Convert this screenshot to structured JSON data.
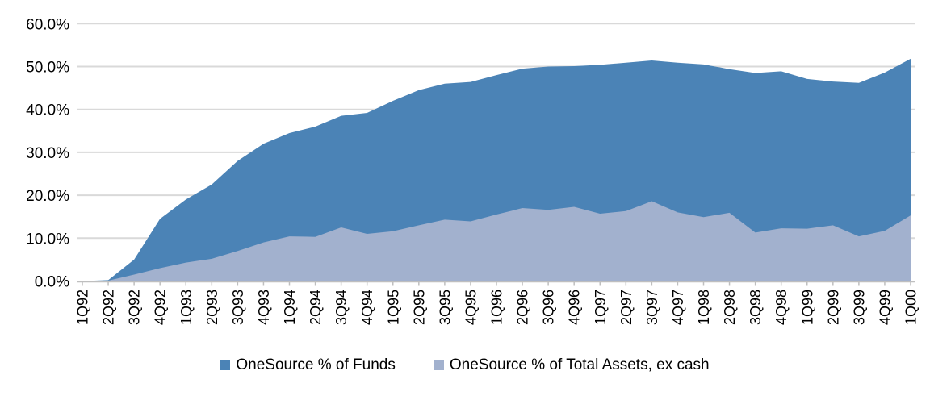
{
  "chart_data": {
    "type": "area",
    "mode": "overlapping",
    "title": "",
    "xlabel": "",
    "ylabel": "",
    "ylim": [
      0,
      60
    ],
    "grid": "horizontal",
    "legend_position": "bottom",
    "yticks": [
      "0.0%",
      "10.0%",
      "20.0%",
      "30.0%",
      "40.0%",
      "50.0%",
      "60.0%"
    ],
    "categories": [
      "1Q92",
      "2Q92",
      "3Q92",
      "4Q92",
      "1Q93",
      "2Q93",
      "3Q93",
      "4Q93",
      "1Q94",
      "2Q94",
      "3Q94",
      "4Q94",
      "1Q95",
      "2Q95",
      "3Q95",
      "4Q95",
      "1Q96",
      "2Q96",
      "3Q96",
      "4Q96",
      "1Q97",
      "2Q97",
      "3Q97",
      "4Q97",
      "1Q98",
      "2Q98",
      "3Q98",
      "4Q98",
      "1Q99",
      "2Q99",
      "3Q99",
      "4Q99",
      "1Q00"
    ],
    "series": [
      {
        "name": "OneSource % of Funds",
        "color": "#4b83b6",
        "values": [
          0,
          0.2,
          5,
          14.5,
          19,
          22.5,
          28,
          32,
          34.5,
          36,
          38.5,
          39.2,
          42,
          44.5,
          46,
          46.4,
          48,
          49.5,
          50,
          50.1,
          50.4,
          50.9,
          51.4,
          50.9,
          50.5,
          49.4,
          48.5,
          48.9,
          47.1,
          46.5,
          46.2,
          48.6,
          51.8
        ]
      },
      {
        "name": "OneSource % of Total Assets, ex cash",
        "color": "#a2b1ce",
        "values": [
          0,
          0.1,
          1.5,
          3,
          4.3,
          5.2,
          7,
          9,
          10.4,
          10.3,
          12.5,
          11,
          11.6,
          13,
          14.3,
          13.9,
          15.5,
          17,
          16.6,
          17.3,
          15.7,
          16.3,
          18.6,
          16,
          14.9,
          15.9,
          11.3,
          12.3,
          12.2,
          13,
          10.4,
          11.7,
          15.3
        ]
      }
    ],
    "colors": {
      "gridline": "#d9d9d9",
      "axis_line": "#bfbfbf",
      "tick_label": "#000000"
    }
  }
}
